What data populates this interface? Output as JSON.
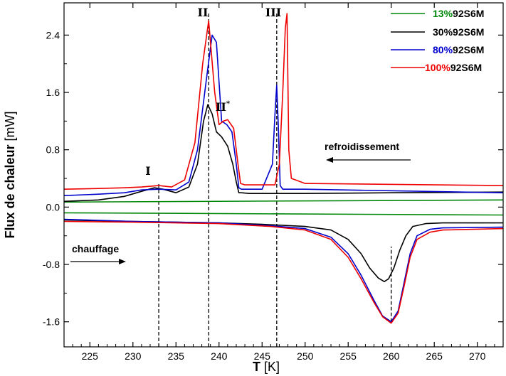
{
  "chart_data": {
    "type": "line",
    "xlabel_symbol": "T",
    "xlabel_unit": "[K]",
    "ylabel_bold": "Flux de chaleur",
    "ylabel_unit": "[mW]",
    "xlim": [
      222,
      273
    ],
    "ylim": [
      -1.95,
      2.85
    ],
    "xticks": [
      225,
      230,
      235,
      240,
      245,
      250,
      255,
      260,
      265,
      270
    ],
    "yticks": [
      -1.6,
      -0.8,
      0.0,
      0.8,
      1.6,
      2.4
    ],
    "ytick_labels": [
      "-1.6",
      "-0.8",
      "0.0",
      "0.8",
      "1.6",
      "2.4"
    ],
    "legend": {
      "placement": "top-right",
      "entries": [
        {
          "percent": "13%",
          "suffix": "92S6M",
          "color": "#00880a"
        },
        {
          "percent": "30%",
          "suffix": "92S6M",
          "color": "#000000"
        },
        {
          "percent": "80%",
          "suffix": "92S6M",
          "color": "#0000cc"
        },
        {
          "percent": "100%",
          "suffix": "92S6M",
          "color": "#ee0000"
        }
      ]
    },
    "annotations": {
      "peak_I": "I",
      "peak_II": "II",
      "peak_II_star_base": "II",
      "peak_II_star_sup": "*",
      "peak_III": "III",
      "cooling": "refroidissement",
      "heating": "chauffage"
    },
    "markers": [
      {
        "x": 233,
        "y_from": -1.95,
        "y_to": 0.35
      },
      {
        "x": 238.8,
        "y_from": -1.95,
        "y_to": 2.7
      },
      {
        "x": 246.7,
        "y_from": -1.95,
        "y_to": 2.7
      },
      {
        "x": 260,
        "y_from": -1.6,
        "y_to": -0.55
      }
    ],
    "series": [
      {
        "color": "#00880a",
        "curves": [
          {
            "x": [
              222,
              273
            ],
            "y": [
              0.07,
              0.1
            ]
          },
          {
            "x": [
              222,
              273
            ],
            "y": [
              -0.08,
              -0.11
            ]
          }
        ]
      },
      {
        "color": "#000000",
        "curves": [
          {
            "x": [
              222,
              226,
              229,
              231,
              232.5,
              233.5,
              235,
              236.5,
              237.5,
              238.2,
              238.7,
              239.2,
              239.7,
              240.3,
              241,
              241.6,
              242,
              242.3,
              242.6,
              243.5,
              246,
              247,
              250,
              260,
              273
            ],
            "y": [
              0.08,
              0.1,
              0.15,
              0.22,
              0.27,
              0.25,
              0.2,
              0.28,
              0.6,
              1.2,
              1.43,
              1.3,
              1.05,
              0.98,
              0.85,
              0.6,
              0.35,
              0.2,
              0.2,
              0.19,
              0.19,
              0.19,
              0.19,
              0.2,
              0.21
            ]
          },
          {
            "x": [
              222,
              230,
              240,
              245,
              250,
              253,
              255,
              256.5,
              257.5,
              258.5,
              259.2,
              259.7,
              260.3,
              261,
              261.7,
              262.5,
              264,
              266,
              273
            ],
            "y": [
              -0.18,
              -0.2,
              -0.22,
              -0.24,
              -0.27,
              -0.32,
              -0.45,
              -0.65,
              -0.85,
              -0.99,
              -1.04,
              -1.0,
              -0.85,
              -0.6,
              -0.4,
              -0.27,
              -0.23,
              -0.22,
              -0.22
            ]
          }
        ]
      },
      {
        "color": "#0000cc",
        "curves": [
          {
            "x": [
              222,
              226,
              229,
              231,
              233,
              235,
              236.5,
              237.5,
              238.5,
              239.2,
              239.7,
              240.3,
              240.9,
              241.5,
              242,
              242.3,
              242.6,
              245,
              246.2,
              246.5,
              246.7,
              246.9,
              247.1,
              247.4,
              250,
              273
            ],
            "y": [
              0.16,
              0.18,
              0.2,
              0.24,
              0.25,
              0.24,
              0.35,
              0.8,
              1.75,
              2.4,
              2.3,
              1.2,
              1.15,
              1.05,
              0.6,
              0.27,
              0.25,
              0.25,
              0.6,
              1.3,
              1.7,
              1.1,
              0.3,
              0.25,
              0.25,
              0.2
            ]
          },
          {
            "x": [
              222,
              230,
              240,
              246,
              250,
              253,
              255,
              256.5,
              258,
              259,
              260,
              260.8,
              261.5,
              262.2,
              263,
              264.5,
              266,
              273
            ],
            "y": [
              -0.17,
              -0.2,
              -0.22,
              -0.26,
              -0.3,
              -0.42,
              -0.65,
              -0.95,
              -1.3,
              -1.52,
              -1.6,
              -1.45,
              -1.05,
              -0.65,
              -0.4,
              -0.31,
              -0.29,
              -0.28
            ]
          }
        ]
      },
      {
        "color": "#ee0000",
        "curves": [
          {
            "x": [
              222,
              226,
              229,
              231,
              233,
              234.5,
              236,
              237.2,
              238.1,
              238.8,
              239.5,
              240,
              240.5,
              241,
              241.7,
              242.2,
              242.5,
              243,
              246.5,
              247,
              247.4,
              247.7,
              247.9,
              248.1,
              248.4,
              250,
              273
            ],
            "y": [
              0.25,
              0.26,
              0.27,
              0.28,
              0.3,
              0.28,
              0.38,
              0.9,
              2.0,
              2.6,
              1.6,
              1.15,
              1.2,
              1.22,
              1.1,
              0.6,
              0.33,
              0.31,
              0.31,
              0.6,
              1.6,
              2.5,
              2.7,
              0.8,
              0.4,
              0.33,
              0.3
            ]
          },
          {
            "x": [
              222,
              230,
              240,
              246,
              250,
              253,
              255,
              256.5,
              258,
              259,
              260,
              260.8,
              261.5,
              262.2,
              263,
              264.5,
              266,
              273
            ],
            "y": [
              -0.2,
              -0.21,
              -0.23,
              -0.27,
              -0.32,
              -0.45,
              -0.7,
              -1.0,
              -1.33,
              -1.53,
              -1.62,
              -1.48,
              -1.1,
              -0.7,
              -0.45,
              -0.35,
              -0.32,
              -0.3
            ]
          }
        ]
      }
    ]
  }
}
